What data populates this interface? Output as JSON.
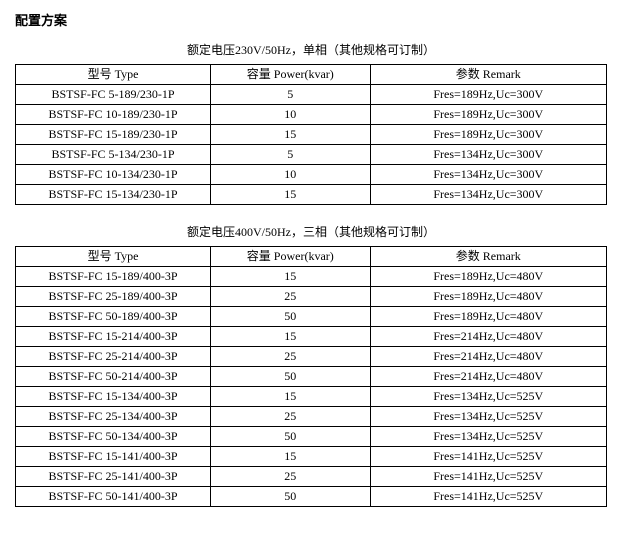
{
  "page_title": "配置方案",
  "section1": {
    "caption": "额定电压230V/50Hz，单相（其他规格可订制）",
    "headers": {
      "type": "型号 Type",
      "power": "容量 Power(kvar)",
      "remark": "参数 Remark"
    },
    "rows": [
      {
        "type": "BSTSF-FC 5-189/230-1P",
        "power": "5",
        "remark": "Fres=189Hz,Uc=300V"
      },
      {
        "type": "BSTSF-FC 10-189/230-1P",
        "power": "10",
        "remark": "Fres=189Hz,Uc=300V"
      },
      {
        "type": "BSTSF-FC 15-189/230-1P",
        "power": "15",
        "remark": "Fres=189Hz,Uc=300V"
      },
      {
        "type": "BSTSF-FC 5-134/230-1P",
        "power": "5",
        "remark": "Fres=134Hz,Uc=300V"
      },
      {
        "type": "BSTSF-FC 10-134/230-1P",
        "power": "10",
        "remark": "Fres=134Hz,Uc=300V"
      },
      {
        "type": "BSTSF-FC 15-134/230-1P",
        "power": "15",
        "remark": "Fres=134Hz,Uc=300V"
      }
    ]
  },
  "section2": {
    "caption": "额定电压400V/50Hz，三相（其他规格可订制）",
    "headers": {
      "type": "型号 Type",
      "power": "容量 Power(kvar)",
      "remark": "参数 Remark"
    },
    "rows": [
      {
        "type": "BSTSF-FC 15-189/400-3P",
        "power": "15",
        "remark": "Fres=189Hz,Uc=480V"
      },
      {
        "type": "BSTSF-FC 25-189/400-3P",
        "power": "25",
        "remark": "Fres=189Hz,Uc=480V"
      },
      {
        "type": "BSTSF-FC 50-189/400-3P",
        "power": "50",
        "remark": "Fres=189Hz,Uc=480V"
      },
      {
        "type": "BSTSF-FC 15-214/400-3P",
        "power": "15",
        "remark": "Fres=214Hz,Uc=480V"
      },
      {
        "type": "BSTSF-FC 25-214/400-3P",
        "power": "25",
        "remark": "Fres=214Hz,Uc=480V"
      },
      {
        "type": "BSTSF-FC 50-214/400-3P",
        "power": "50",
        "remark": "Fres=214Hz,Uc=480V"
      },
      {
        "type": "BSTSF-FC 15-134/400-3P",
        "power": "15",
        "remark": "Fres=134Hz,Uc=525V"
      },
      {
        "type": "BSTSF-FC 25-134/400-3P",
        "power": "25",
        "remark": "Fres=134Hz,Uc=525V"
      },
      {
        "type": "BSTSF-FC 50-134/400-3P",
        "power": "50",
        "remark": "Fres=134Hz,Uc=525V"
      },
      {
        "type": "BSTSF-FC 15-141/400-3P",
        "power": "15",
        "remark": "Fres=141Hz,Uc=525V"
      },
      {
        "type": "BSTSF-FC 25-141/400-3P",
        "power": "25",
        "remark": "Fres=141Hz,Uc=525V"
      },
      {
        "type": "BSTSF-FC 50-141/400-3P",
        "power": "50",
        "remark": "Fres=141Hz,Uc=525V"
      }
    ]
  }
}
